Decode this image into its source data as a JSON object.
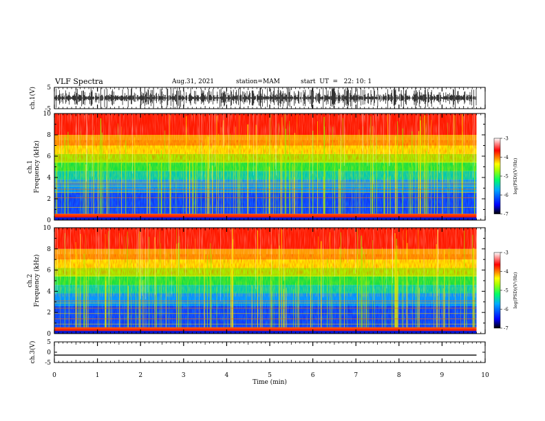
{
  "header": {
    "title": "VLF Spectra",
    "date": "Aug.31, 2021",
    "station": "station=MAM",
    "start": "start  UT  =   22: 10: 1"
  },
  "chart_data": [
    {
      "type": "line",
      "ylabel": "ch.1(V)",
      "ylim": [
        -5,
        5
      ],
      "ytick_labels": [
        "5",
        "-5"
      ],
      "description_series": "waveform burst-like"
    },
    {
      "type": "heatmap",
      "ylabel": "ch.1\nFrequency  (kHz)",
      "ylabel_line1": "ch.1",
      "ylabel_line2": "Frequency  (kHz)",
      "ylim": [
        0,
        10
      ],
      "ytick_labels": [
        "0",
        "2",
        "4",
        "6",
        "8",
        "10"
      ],
      "colorbar": {
        "label": "log(PSD)(V²/Hz)",
        "range": [
          -7,
          -3
        ],
        "tick_labels": [
          "-3",
          "-4",
          "-5",
          "-6",
          "-7"
        ],
        "colors": [
          "#000000",
          "#0000ff",
          "#00aaff",
          "#00ff66",
          "#aaff00",
          "#ffff00",
          "#ff8800",
          "#ff0000",
          "#ffffff"
        ]
      }
    },
    {
      "type": "heatmap",
      "ylabel_line1": "ch.2",
      "ylabel_line2": "Frequency  (kHz)",
      "ylim": [
        0,
        10
      ],
      "ytick_labels": [
        "0",
        "2",
        "4",
        "6",
        "8",
        "10"
      ],
      "colorbar": {
        "label": "log(PSD)(V²/Hz)",
        "range": [
          -7,
          -3
        ],
        "tick_labels": [
          "-3",
          "-4",
          "-5",
          "-6",
          "-7"
        ]
      }
    },
    {
      "type": "line",
      "ylabel": "ch.3(V)",
      "ylim": [
        -5,
        5
      ],
      "ytick_labels": [
        "5",
        "0",
        "-5"
      ],
      "x": [
        0,
        9.8
      ],
      "y": [
        -1.4,
        -1.4
      ]
    }
  ],
  "xaxis": {
    "label": "Time  (min)",
    "xlim": [
      0,
      10
    ],
    "tick_labels": [
      "0",
      "1",
      "2",
      "3",
      "4",
      "5",
      "6",
      "7",
      "8",
      "9",
      "10"
    ]
  }
}
